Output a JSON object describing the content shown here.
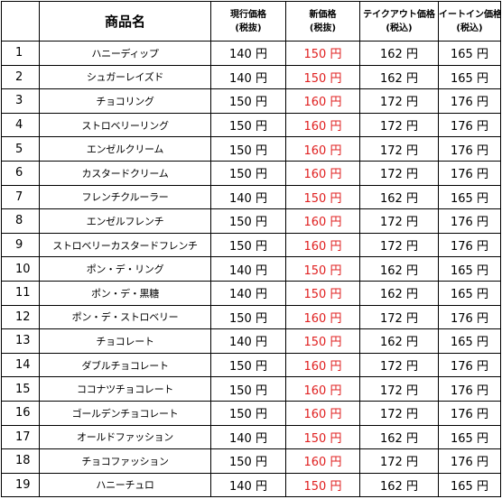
{
  "table": {
    "headers": {
      "no": "",
      "name": "商品名",
      "current": [
        "現行価格",
        "(税抜)"
      ],
      "new": [
        "新価格",
        "(税抜)"
      ],
      "takeout": [
        "テイクアウト価格",
        "(税込)"
      ],
      "eatin": [
        "イートイン価格",
        "(税込)"
      ]
    },
    "rows": [
      {
        "no": "1",
        "name": "ハニーディップ",
        "current": "140 円",
        "new": "150 円",
        "takeout": "162 円",
        "eatin": "165 円"
      },
      {
        "no": "2",
        "name": "シュガーレイズド",
        "current": "140 円",
        "new": "150 円",
        "takeout": "162 円",
        "eatin": "165 円"
      },
      {
        "no": "3",
        "name": "チョコリング",
        "current": "150 円",
        "new": "160 円",
        "takeout": "172 円",
        "eatin": "176 円"
      },
      {
        "no": "4",
        "name": "ストロベリーリング",
        "current": "150 円",
        "new": "160 円",
        "takeout": "172 円",
        "eatin": "176 円"
      },
      {
        "no": "5",
        "name": "エンゼルクリーム",
        "current": "150 円",
        "new": "160 円",
        "takeout": "172 円",
        "eatin": "176 円"
      },
      {
        "no": "6",
        "name": "カスタードクリーム",
        "current": "150 円",
        "new": "160 円",
        "takeout": "172 円",
        "eatin": "176 円"
      },
      {
        "no": "7",
        "name": "フレンチクルーラー",
        "current": "140 円",
        "new": "150 円",
        "takeout": "162 円",
        "eatin": "165 円"
      },
      {
        "no": "8",
        "name": "エンゼルフレンチ",
        "current": "150 円",
        "new": "160 円",
        "takeout": "172 円",
        "eatin": "176 円"
      },
      {
        "no": "9",
        "name": "ストロベリーカスタードフレンチ",
        "current": "150 円",
        "new": "160 円",
        "takeout": "172 円",
        "eatin": "176 円"
      },
      {
        "no": "10",
        "name": "ポン・デ・リング",
        "current": "140 円",
        "new": "150 円",
        "takeout": "162 円",
        "eatin": "165 円"
      },
      {
        "no": "11",
        "name": "ポン・デ・黒糖",
        "current": "140 円",
        "new": "150 円",
        "takeout": "162 円",
        "eatin": "165 円"
      },
      {
        "no": "12",
        "name": "ポン・デ・ストロベリー",
        "current": "150 円",
        "new": "160 円",
        "takeout": "172 円",
        "eatin": "176 円"
      },
      {
        "no": "13",
        "name": "チョコレート",
        "current": "140 円",
        "new": "150 円",
        "takeout": "162 円",
        "eatin": "165 円"
      },
      {
        "no": "14",
        "name": "ダブルチョコレート",
        "current": "150 円",
        "new": "160 円",
        "takeout": "172 円",
        "eatin": "176 円"
      },
      {
        "no": "15",
        "name": "ココナツチョコレート",
        "current": "150 円",
        "new": "160 円",
        "takeout": "172 円",
        "eatin": "176 円"
      },
      {
        "no": "16",
        "name": "ゴールデンチョコレート",
        "current": "150 円",
        "new": "160 円",
        "takeout": "172 円",
        "eatin": "176 円"
      },
      {
        "no": "17",
        "name": "オールドファッション",
        "current": "140 円",
        "new": "150 円",
        "takeout": "162 円",
        "eatin": "165 円"
      },
      {
        "no": "18",
        "name": "チョコファッション",
        "current": "150 円",
        "new": "160 円",
        "takeout": "172 円",
        "eatin": "176 円"
      },
      {
        "no": "19",
        "name": "ハニーチュロ",
        "current": "140 円",
        "new": "150 円",
        "takeout": "162 円",
        "eatin": "165 円"
      }
    ]
  },
  "colors": {
    "new_price": "#e02020",
    "text": "#000000",
    "border": "#000000",
    "background": "#ffffff"
  }
}
